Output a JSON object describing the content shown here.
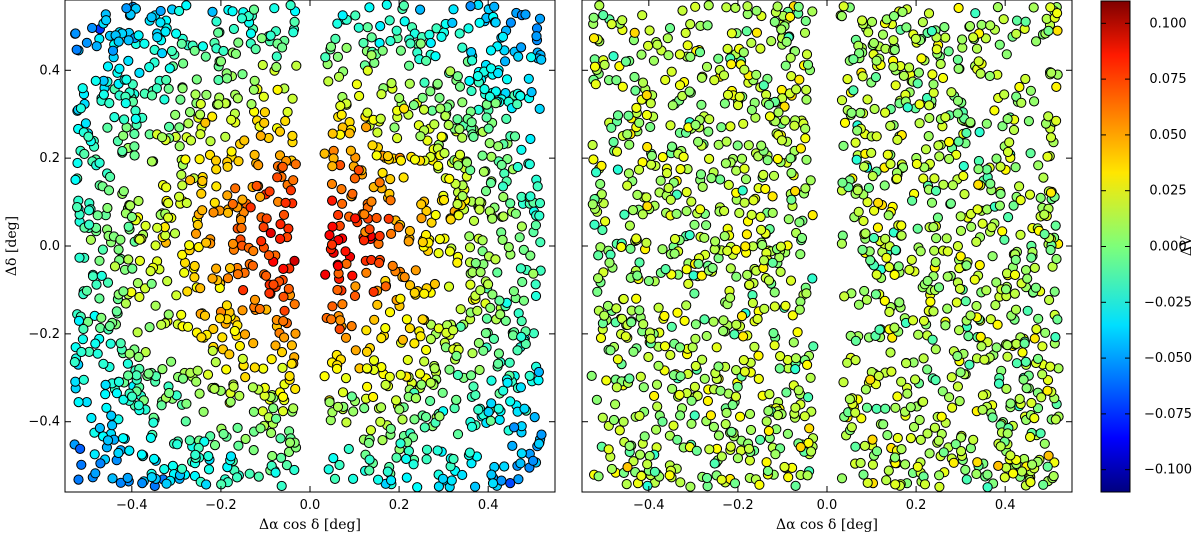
{
  "chart_data": [
    {
      "type": "scatter",
      "panel": "left",
      "xlabel": "Δα cos δ [deg]",
      "ylabel": "Δδ [deg]",
      "xlim": [
        -0.55,
        0.55
      ],
      "ylim": [
        -0.56,
        0.56
      ],
      "xticks": [
        -0.4,
        -0.2,
        0.0,
        0.2,
        0.4
      ],
      "xtick_labels": [
        "−0.4",
        "−0.2",
        "0.0",
        "0.2",
        "0.4"
      ],
      "yticks": [
        -0.4,
        -0.2,
        0.0,
        0.2,
        0.4
      ],
      "ytick_labels": [
        "−0.4",
        "−0.2",
        "0.0",
        "0.2",
        "0.4"
      ],
      "pattern": "radial",
      "description_of_values": "dV rises from about -0.08 at the corners to about +0.09 near the central gap; approx. 1600 points in two columns separated by a gap near x=0",
      "columns": [
        [
          -0.53,
          -0.03
        ],
        [
          0.03,
          0.52
        ]
      ],
      "n_points": 1600,
      "grid": false
    },
    {
      "type": "scatter",
      "panel": "right",
      "xlabel": "Δα cos δ [deg]",
      "ylabel": "",
      "xlim": [
        -0.55,
        0.55
      ],
      "ylim": [
        -0.56,
        0.56
      ],
      "xticks": [
        -0.4,
        -0.2,
        0.0,
        0.2,
        0.4
      ],
      "xtick_labels": [
        "−0.4",
        "−0.2",
        "0.0",
        "0.2",
        "0.4"
      ],
      "pattern": "residual",
      "columns": [
        [
          -0.53,
          -0.03
        ],
        [
          0.03,
          0.52
        ]
      ],
      "n_points": 1600,
      "grid": false
    }
  ],
  "colorbar": {
    "label": "ΔV",
    "range": [
      -0.11,
      0.11
    ],
    "ticks": [
      0.1,
      0.075,
      0.05,
      0.025,
      0.0,
      -0.025,
      -0.05,
      -0.075,
      -0.1
    ],
    "tick_labels": [
      "0.100",
      "0.075",
      "0.050",
      "0.025",
      "0.000",
      "−0.025",
      "−0.050",
      "−0.075",
      "−0.100"
    ],
    "colormap": "jet"
  },
  "colors": {
    "frame": "#000000",
    "background": "#ffffff",
    "point_edge": "#000000"
  }
}
